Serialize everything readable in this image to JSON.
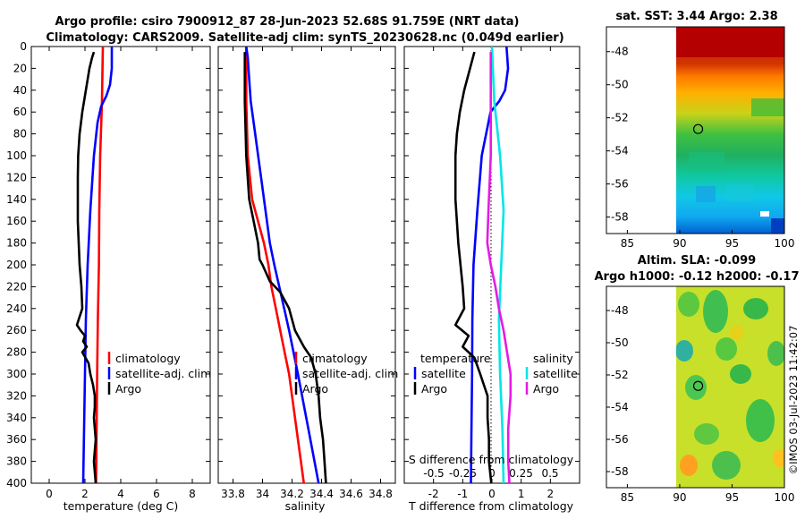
{
  "title": {
    "line1": "Argo profile: csiro 7900912_87 28-Jun-2023 52.68S 91.759E (NRT data)",
    "line2": "Climatology: CARS2009. Satellite-adj clim: synTS_20230628.nc (0.049d earlier)"
  },
  "copyright": "©IMOS 03-Jul-2023 11:42:07",
  "colors": {
    "climatology": "#ff0000",
    "satellite": "#0000ff",
    "argo": "#000000",
    "salinity_sat": "#00e6e6",
    "salinity_argo": "#e619e6"
  },
  "chart_data": [
    {
      "id": "temperature",
      "type": "line",
      "xlabel": "temperature (deg C)",
      "ylabel": "",
      "xlim": [
        -1,
        9
      ],
      "ylim": [
        0,
        400
      ],
      "xticks": [
        "0",
        "2",
        "4",
        "6",
        "8"
      ],
      "xtick_values": [
        0,
        2,
        4,
        6,
        8
      ],
      "yticks": [
        "0",
        "20",
        "40",
        "60",
        "80",
        "100",
        "120",
        "140",
        "160",
        "180",
        "200",
        "220",
        "240",
        "260",
        "280",
        "300",
        "320",
        "340",
        "360",
        "380",
        "400"
      ],
      "legend": {
        "position": "lower-right",
        "labels": [
          "climatology",
          "satellite-adj. clim",
          "Argo"
        ]
      },
      "series": [
        {
          "name": "climatology",
          "color": "#ff0000",
          "depth": [
            0,
            50,
            100,
            150,
            200,
            250,
            300,
            350,
            400
          ],
          "values": [
            3.0,
            2.95,
            2.85,
            2.8,
            2.78,
            2.72,
            2.68,
            2.65,
            2.62
          ]
        },
        {
          "name": "satellite-adj. clim",
          "color": "#0000ff",
          "depth": [
            0,
            20,
            35,
            45,
            55,
            70,
            100,
            150,
            200,
            250,
            300,
            350,
            400
          ],
          "values": [
            3.5,
            3.5,
            3.4,
            3.2,
            2.9,
            2.7,
            2.5,
            2.3,
            2.15,
            2.05,
            2.0,
            1.95,
            1.9
          ]
        },
        {
          "name": "Argo",
          "color": "#000000",
          "depth": [
            5,
            10,
            20,
            40,
            60,
            80,
            100,
            120,
            140,
            160,
            180,
            200,
            220,
            240,
            250,
            255,
            260,
            265,
            270,
            275,
            280,
            290,
            300,
            310,
            320,
            330,
            340,
            350,
            360,
            370,
            380,
            390,
            400
          ],
          "values": [
            2.5,
            2.4,
            2.25,
            2.05,
            1.85,
            1.7,
            1.62,
            1.6,
            1.6,
            1.6,
            1.65,
            1.7,
            1.8,
            1.85,
            1.65,
            1.55,
            1.75,
            2.0,
            1.9,
            2.1,
            1.85,
            2.2,
            2.3,
            2.45,
            2.55,
            2.55,
            2.5,
            2.55,
            2.6,
            2.55,
            2.5,
            2.55,
            2.6
          ]
        }
      ]
    },
    {
      "id": "salinity",
      "type": "line",
      "xlabel": "salinity",
      "ylabel": "",
      "xlim": [
        33.7,
        34.9
      ],
      "ylim": [
        0,
        400
      ],
      "xticks": [
        "33.8",
        "34",
        "34.2",
        "34.4",
        "34.6",
        "34.8"
      ],
      "xtick_values": [
        33.8,
        34.0,
        34.2,
        34.4,
        34.6,
        34.8
      ],
      "legend": {
        "position": "lower-right",
        "labels": [
          "climatology",
          "satellite-adj. clim",
          "Argo"
        ]
      },
      "series": [
        {
          "name": "climatology",
          "color": "#ff0000",
          "depth": [
            0,
            50,
            100,
            140,
            160,
            180,
            200,
            220,
            240,
            260,
            280,
            300,
            340,
            400
          ],
          "values": [
            33.89,
            33.89,
            33.9,
            33.93,
            33.97,
            34.01,
            34.04,
            34.06,
            34.09,
            34.12,
            34.15,
            34.18,
            34.22,
            34.28
          ]
        },
        {
          "name": "satellite-adj. clim",
          "color": "#0000ff",
          "depth": [
            0,
            10,
            30,
            50,
            80,
            120,
            150,
            180,
            200,
            230,
            260,
            300,
            350,
            400
          ],
          "values": [
            33.89,
            33.9,
            33.91,
            33.92,
            33.95,
            33.99,
            34.02,
            34.05,
            34.08,
            34.13,
            34.18,
            34.24,
            34.31,
            34.38
          ]
        },
        {
          "name": "Argo",
          "color": "#000000",
          "depth": [
            5,
            20,
            50,
            100,
            140,
            160,
            180,
            195,
            200,
            215,
            225,
            240,
            260,
            275,
            285,
            300,
            320,
            340,
            360,
            380,
            400
          ],
          "values": [
            33.88,
            33.88,
            33.88,
            33.89,
            33.91,
            33.94,
            33.97,
            33.98,
            34.0,
            34.05,
            34.12,
            34.18,
            34.22,
            34.28,
            34.33,
            34.36,
            34.38,
            34.39,
            34.41,
            34.42,
            34.43
          ]
        }
      ]
    },
    {
      "id": "difference",
      "type": "line",
      "xlabel": "T difference from climatology",
      "top_xlabel": "S difference from climatology",
      "xlim": [
        -3,
        3
      ],
      "ylim": [
        0,
        400
      ],
      "xticks": [
        "-2",
        "-1",
        "0",
        "1",
        "2"
      ],
      "xtick_values": [
        -2,
        -1,
        0,
        1,
        2
      ],
      "s_ticks": [
        "-0.5",
        "-0.25",
        "0",
        "0.25",
        "0.5"
      ],
      "s_tick_values": [
        -0.5,
        -0.25,
        0,
        0.25,
        0.5
      ],
      "legend_temperature": {
        "heading": "temperature",
        "labels": [
          "satellite",
          "Argo"
        ]
      },
      "legend_salinity": {
        "heading": "salinity",
        "labels": [
          "satellite",
          "Argo"
        ]
      },
      "series": [
        {
          "name": "temperature satellite",
          "color": "#0000ff",
          "scale": "T",
          "depth": [
            0,
            20,
            40,
            50,
            60,
            100,
            150,
            200,
            250,
            300,
            350,
            400
          ],
          "values": [
            0.5,
            0.55,
            0.45,
            0.25,
            -0.05,
            -0.35,
            -0.5,
            -0.63,
            -0.67,
            -0.68,
            -0.7,
            -0.72
          ]
        },
        {
          "name": "temperature Argo",
          "color": "#000000",
          "scale": "T",
          "depth": [
            5,
            20,
            40,
            60,
            80,
            100,
            140,
            180,
            220,
            240,
            255,
            265,
            275,
            285,
            300,
            320,
            340,
            360,
            380,
            400
          ],
          "values": [
            -0.6,
            -0.75,
            -0.95,
            -1.1,
            -1.2,
            -1.25,
            -1.25,
            -1.15,
            -1.0,
            -0.95,
            -1.25,
            -0.8,
            -1.0,
            -0.6,
            -0.4,
            -0.15,
            -0.15,
            -0.1,
            -0.1,
            -0.02
          ]
        },
        {
          "name": "salinity satellite",
          "color": "#00e6e6",
          "scale": "S",
          "depth": [
            0,
            50,
            100,
            150,
            200,
            250,
            300,
            350,
            400
          ],
          "values": [
            0.0,
            0.02,
            0.07,
            0.1,
            0.08,
            0.06,
            0.07,
            0.09,
            0.1
          ]
        },
        {
          "name": "salinity Argo",
          "color": "#e619e6",
          "scale": "S",
          "depth": [
            5,
            50,
            100,
            150,
            180,
            200,
            220,
            240,
            260,
            280,
            300,
            320,
            350,
            380,
            400
          ],
          "values": [
            -0.01,
            -0.01,
            -0.01,
            -0.03,
            -0.04,
            -0.01,
            0.03,
            0.06,
            0.1,
            0.13,
            0.16,
            0.16,
            0.14,
            0.14,
            0.15
          ]
        }
      ]
    },
    {
      "id": "sst_map",
      "type": "heatmap",
      "title": "sat. SST: 3.44 Argo: 2.38",
      "xlim": [
        83,
        100
      ],
      "ylim": [
        -59,
        -46.5
      ],
      "xticks": [
        "85",
        "90",
        "95",
        "100"
      ],
      "xtick_values": [
        85,
        90,
        95,
        100
      ],
      "yticks": [
        "-48",
        "-50",
        "-52",
        "-54",
        "-56",
        "-58"
      ],
      "ytick_values": [
        -48,
        -50,
        -52,
        -54,
        -56,
        -58
      ],
      "data_lon_range": [
        90,
        100
      ],
      "marker": {
        "lon": 91.759,
        "lat": -52.68
      }
    },
    {
      "id": "sla_map",
      "type": "heatmap",
      "title_line1": "Altim. SLA: -0.099",
      "title_line2": "Argo h1000: -0.12 h2000: -0.17",
      "xlim": [
        83,
        100
      ],
      "ylim": [
        -59,
        -46.5
      ],
      "xticks": [
        "85",
        "90",
        "95",
        "100"
      ],
      "xtick_values": [
        85,
        90,
        95,
        100
      ],
      "yticks": [
        "-48",
        "-50",
        "-52",
        "-54",
        "-56",
        "-58"
      ],
      "ytick_values": [
        -48,
        -50,
        -52,
        -54,
        -56,
        -58
      ],
      "data_lon_range": [
        90,
        100
      ],
      "marker": {
        "lon": 91.759,
        "lat": -52.68
      }
    }
  ]
}
